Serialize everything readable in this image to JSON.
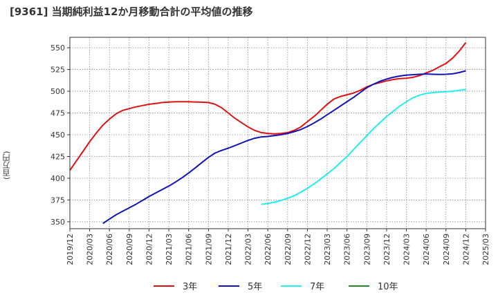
{
  "chart_data": {
    "type": "line",
    "title": "[9361]  当期純利益12か月移動合計の平均値の推移",
    "ylabel": "(百万円)",
    "xlabel": "",
    "ylim": [
      342,
      562
    ],
    "yticks": [
      350,
      375,
      400,
      425,
      450,
      475,
      500,
      525,
      550
    ],
    "xlim": [
      "2019-12",
      "2025-03"
    ],
    "xticks": [
      "2019/12",
      "2020/03",
      "2020/06",
      "2020/09",
      "2020/12",
      "2021/03",
      "2021/06",
      "2021/09",
      "2021/12",
      "2022/03",
      "2022/06",
      "2022/09",
      "2022/12",
      "2023/03",
      "2023/06",
      "2023/09",
      "2023/12",
      "2024/03",
      "2024/06",
      "2024/09",
      "2024/12",
      "2025/03"
    ],
    "grid": true,
    "legend_position": "bottom",
    "series": [
      {
        "name": "3年",
        "color": "#dd1111",
        "points": [
          [
            "2019-12",
            409
          ],
          [
            "2020-01",
            420
          ],
          [
            "2020-02",
            431
          ],
          [
            "2020-03",
            442
          ],
          [
            "2020-04",
            452
          ],
          [
            "2020-05",
            461
          ],
          [
            "2020-06",
            468
          ],
          [
            "2020-07",
            474
          ],
          [
            "2020-08",
            478
          ],
          [
            "2020-09",
            480
          ],
          [
            "2020-10",
            482
          ],
          [
            "2020-11",
            483.5
          ],
          [
            "2020-12",
            485
          ],
          [
            "2021-01",
            486
          ],
          [
            "2021-02",
            487
          ],
          [
            "2021-03",
            487.5
          ],
          [
            "2021-04",
            488
          ],
          [
            "2021-05",
            488
          ],
          [
            "2021-06",
            488
          ],
          [
            "2021-07",
            487.7
          ],
          [
            "2021-08",
            487.4
          ],
          [
            "2021-09",
            487
          ],
          [
            "2021-10",
            485
          ],
          [
            "2021-11",
            481
          ],
          [
            "2021-12",
            475
          ],
          [
            "2022-01",
            469
          ],
          [
            "2022-02",
            464
          ],
          [
            "2022-03",
            459
          ],
          [
            "2022-04",
            455
          ],
          [
            "2022-05",
            452.5
          ],
          [
            "2022-06",
            451.5
          ],
          [
            "2022-07",
            451
          ],
          [
            "2022-08",
            451.5
          ],
          [
            "2022-09",
            452.5
          ],
          [
            "2022-10",
            455
          ],
          [
            "2022-11",
            459
          ],
          [
            "2022-12",
            465
          ],
          [
            "2023-01",
            471
          ],
          [
            "2023-02",
            478
          ],
          [
            "2023-03",
            485
          ],
          [
            "2023-04",
            491
          ],
          [
            "2023-05",
            494
          ],
          [
            "2023-06",
            496
          ],
          [
            "2023-07",
            498
          ],
          [
            "2023-08",
            501
          ],
          [
            "2023-09",
            505
          ],
          [
            "2023-10",
            508
          ],
          [
            "2023-11",
            510
          ],
          [
            "2023-12",
            512
          ],
          [
            "2024-01",
            513.5
          ],
          [
            "2024-02",
            514.5
          ],
          [
            "2024-03",
            515
          ],
          [
            "2024-04",
            516
          ],
          [
            "2024-05",
            518
          ],
          [
            "2024-06",
            521
          ],
          [
            "2024-07",
            524
          ],
          [
            "2024-08",
            528
          ],
          [
            "2024-09",
            532
          ],
          [
            "2024-10",
            538
          ],
          [
            "2024-11",
            546
          ],
          [
            "2024-12",
            556
          ]
        ]
      },
      {
        "name": "5年",
        "color": "#1111bb",
        "points": [
          [
            "2020-05",
            348
          ],
          [
            "2020-06",
            353
          ],
          [
            "2020-07",
            358
          ],
          [
            "2020-08",
            362
          ],
          [
            "2020-09",
            366
          ],
          [
            "2020-10",
            370
          ],
          [
            "2020-11",
            374.5
          ],
          [
            "2020-12",
            379
          ],
          [
            "2021-01",
            383
          ],
          [
            "2021-02",
            387
          ],
          [
            "2021-03",
            391
          ],
          [
            "2021-04",
            395.5
          ],
          [
            "2021-05",
            400.5
          ],
          [
            "2021-06",
            406
          ],
          [
            "2021-07",
            412
          ],
          [
            "2021-08",
            418
          ],
          [
            "2021-09",
            424
          ],
          [
            "2021-10",
            429
          ],
          [
            "2021-11",
            432
          ],
          [
            "2021-12",
            434.5
          ],
          [
            "2022-01",
            437.5
          ],
          [
            "2022-02",
            440.5
          ],
          [
            "2022-03",
            443.5
          ],
          [
            "2022-04",
            446
          ],
          [
            "2022-05",
            447.5
          ],
          [
            "2022-06",
            448
          ],
          [
            "2022-07",
            449
          ],
          [
            "2022-08",
            450
          ],
          [
            "2022-09",
            451.5
          ],
          [
            "2022-10",
            453.5
          ],
          [
            "2022-11",
            456
          ],
          [
            "2022-12",
            459.5
          ],
          [
            "2023-01",
            463.5
          ],
          [
            "2023-02",
            468
          ],
          [
            "2023-03",
            473
          ],
          [
            "2023-04",
            478
          ],
          [
            "2023-05",
            483
          ],
          [
            "2023-06",
            488
          ],
          [
            "2023-07",
            493
          ],
          [
            "2023-08",
            498.5
          ],
          [
            "2023-09",
            504
          ],
          [
            "2023-10",
            508
          ],
          [
            "2023-11",
            511.5
          ],
          [
            "2023-12",
            514
          ],
          [
            "2024-01",
            516
          ],
          [
            "2024-02",
            517.5
          ],
          [
            "2024-03",
            518.5
          ],
          [
            "2024-04",
            519
          ],
          [
            "2024-05",
            519.5
          ],
          [
            "2024-06",
            519.8
          ],
          [
            "2024-07",
            519.5
          ],
          [
            "2024-08",
            519.3
          ],
          [
            "2024-09",
            519.5
          ],
          [
            "2024-10",
            520
          ],
          [
            "2024-11",
            521.5
          ],
          [
            "2024-12",
            523.5
          ]
        ]
      },
      {
        "name": "7年",
        "color": "#22eeee",
        "points": [
          [
            "2022-05",
            370
          ],
          [
            "2022-06",
            371
          ],
          [
            "2022-07",
            372.5
          ],
          [
            "2022-08",
            374.5
          ],
          [
            "2022-09",
            377
          ],
          [
            "2022-10",
            380
          ],
          [
            "2022-11",
            384
          ],
          [
            "2022-12",
            388.5
          ],
          [
            "2023-01",
            393.5
          ],
          [
            "2023-02",
            399
          ],
          [
            "2023-03",
            405
          ],
          [
            "2023-04",
            411
          ],
          [
            "2023-05",
            418
          ],
          [
            "2023-06",
            425
          ],
          [
            "2023-07",
            433
          ],
          [
            "2023-08",
            441
          ],
          [
            "2023-09",
            449
          ],
          [
            "2023-10",
            457
          ],
          [
            "2023-11",
            464
          ],
          [
            "2023-12",
            471
          ],
          [
            "2024-01",
            477
          ],
          [
            "2024-02",
            483
          ],
          [
            "2024-03",
            488
          ],
          [
            "2024-04",
            492.5
          ],
          [
            "2024-05",
            495.5
          ],
          [
            "2024-06",
            497.5
          ],
          [
            "2024-07",
            498.5
          ],
          [
            "2024-08",
            499
          ],
          [
            "2024-09",
            499.5
          ],
          [
            "2024-10",
            500
          ],
          [
            "2024-11",
            501
          ],
          [
            "2024-12",
            502
          ]
        ]
      },
      {
        "name": "10年",
        "color": "#228822",
        "points": []
      }
    ]
  }
}
